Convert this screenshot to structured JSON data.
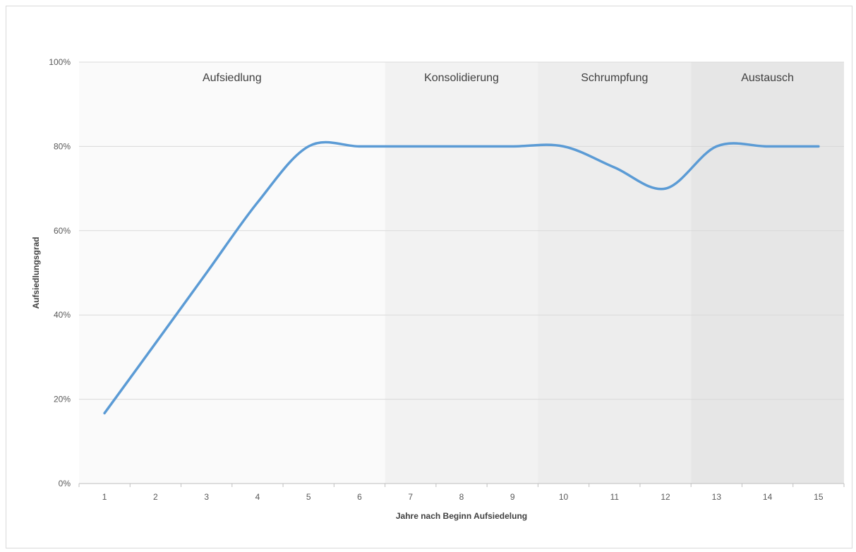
{
  "chart_data": {
    "type": "line",
    "title": "",
    "xlabel": "Jahre nach Beginn Aufsiedelung",
    "ylabel": "Aufsiedlungsgrad",
    "x": [
      1,
      2,
      3,
      4,
      5,
      6,
      7,
      8,
      9,
      10,
      11,
      12,
      13,
      14,
      15
    ],
    "y_ticks": [
      "0%",
      "20%",
      "40%",
      "60%",
      "80%",
      "100%"
    ],
    "ylim": [
      0,
      100
    ],
    "grid": true,
    "smooth": true,
    "series": [
      {
        "values": [
          16.7,
          33.3,
          50,
          66.7,
          80,
          80,
          80,
          80,
          80,
          80,
          75,
          70,
          80,
          80,
          80
        ],
        "color": "#5b9bd5"
      }
    ],
    "phases": [
      {
        "label": "Aufsiedlung",
        "from": 1,
        "to": 6,
        "color": "#fafafa"
      },
      {
        "label": "Konsolidierung",
        "from": 7,
        "to": 9,
        "color": "#f2f2f2"
      },
      {
        "label": "Schrumpfung",
        "from": 10,
        "to": 12,
        "color": "#ededed"
      },
      {
        "label": "Austausch",
        "from": 13,
        "to": 15,
        "color": "#e6e6e6"
      }
    ]
  }
}
